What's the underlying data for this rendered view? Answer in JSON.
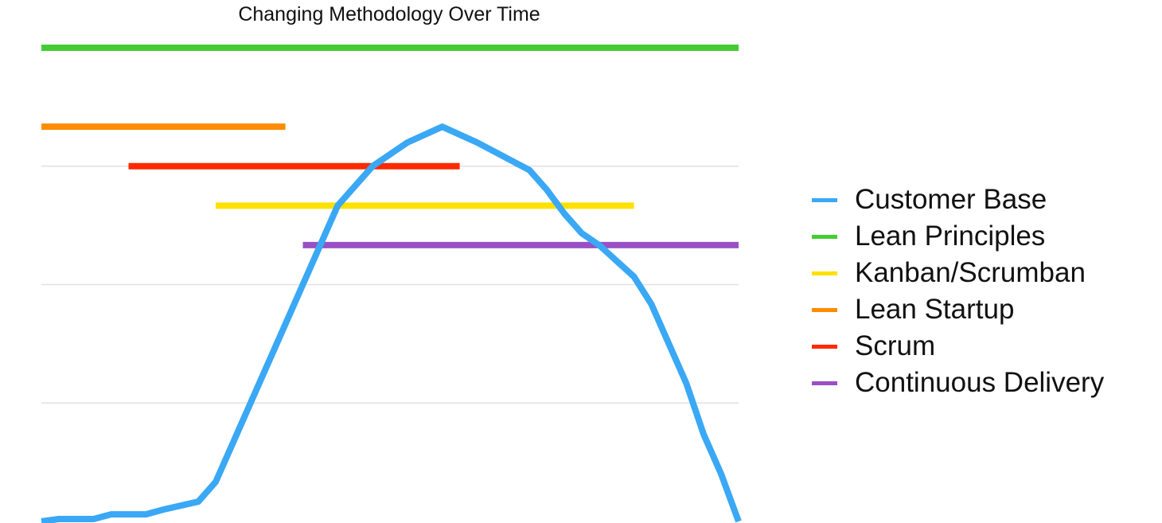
{
  "chart_data": {
    "type": "line",
    "title": "Changing Methodology Over Time",
    "xlabel": "",
    "ylabel": "",
    "xlim": [
      0,
      40
    ],
    "ylim": [
      0,
      10
    ],
    "grid": true,
    "gridlines_y": [
      3,
      6,
      9
    ],
    "legend_position": "right",
    "series": [
      {
        "name": "Customer Base",
        "color": "#3aa8f5",
        "points": [
          [
            0,
            0.0
          ],
          [
            1,
            0.06
          ],
          [
            3,
            0.06
          ],
          [
            4,
            0.18
          ],
          [
            6,
            0.18
          ],
          [
            7,
            0.3
          ],
          [
            9,
            0.5
          ],
          [
            10,
            1.0
          ],
          [
            12,
            3.0
          ],
          [
            14,
            5.0
          ],
          [
            15,
            6.0
          ],
          [
            17,
            8.0
          ],
          [
            19,
            9.0
          ],
          [
            21,
            9.6
          ],
          [
            23,
            10.0
          ],
          [
            25,
            9.6
          ],
          [
            28,
            8.9
          ],
          [
            29,
            8.4
          ],
          [
            30,
            7.8
          ],
          [
            31,
            7.3
          ],
          [
            32,
            7.0
          ],
          [
            34,
            6.2
          ],
          [
            35,
            5.5
          ],
          [
            37,
            3.5
          ],
          [
            38,
            2.2
          ],
          [
            39,
            1.2
          ],
          [
            40,
            0.0
          ]
        ]
      },
      {
        "name": "Lean Principles",
        "color": "#44cc33",
        "start": 0,
        "end": 40,
        "level": 12
      },
      {
        "name": "Kanban/Scrumban",
        "color": "#ffe100",
        "start": 10,
        "end": 34,
        "level": 8
      },
      {
        "name": "Lean Startup",
        "color": "#ff8c00",
        "start": 0,
        "end": 14,
        "level": 10
      },
      {
        "name": "Scrum",
        "color": "#ff2a00",
        "start": 5,
        "end": 24,
        "level": 9
      },
      {
        "name": "Continuous Delivery",
        "color": "#9a4fc4",
        "start": 15,
        "end": 40,
        "level": 7
      }
    ],
    "legend_order": [
      "Customer Base",
      "Lean Principles",
      "Kanban/Scrumban",
      "Lean Startup",
      "Scrum",
      "Continuous Delivery"
    ]
  }
}
